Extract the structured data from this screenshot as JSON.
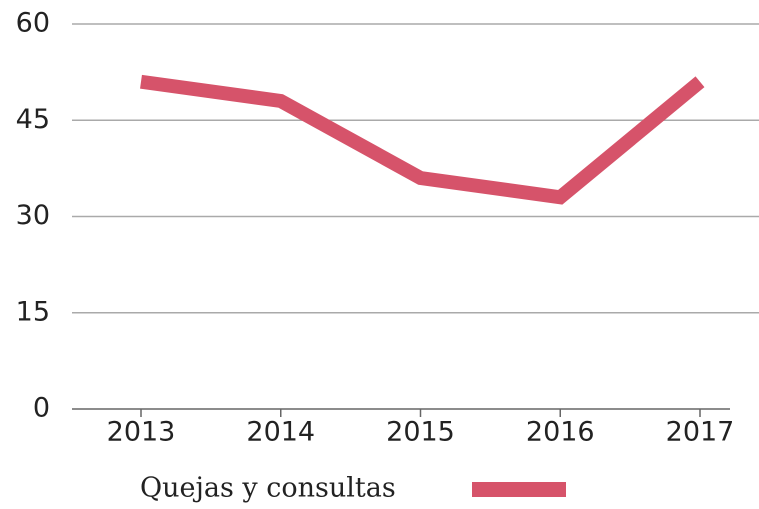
{
  "chart_data": {
    "type": "line",
    "categories": [
      "2013",
      "2014",
      "2015",
      "2016",
      "2017"
    ],
    "series": [
      {
        "name": "Quejas y consultas",
        "color": "#d6536a",
        "values": [
          51,
          48,
          36,
          33,
          51
        ]
      }
    ],
    "ylim": [
      0,
      60
    ],
    "yticks": [
      0,
      15,
      30,
      45,
      60
    ],
    "grid": true,
    "legend": "bottom"
  }
}
